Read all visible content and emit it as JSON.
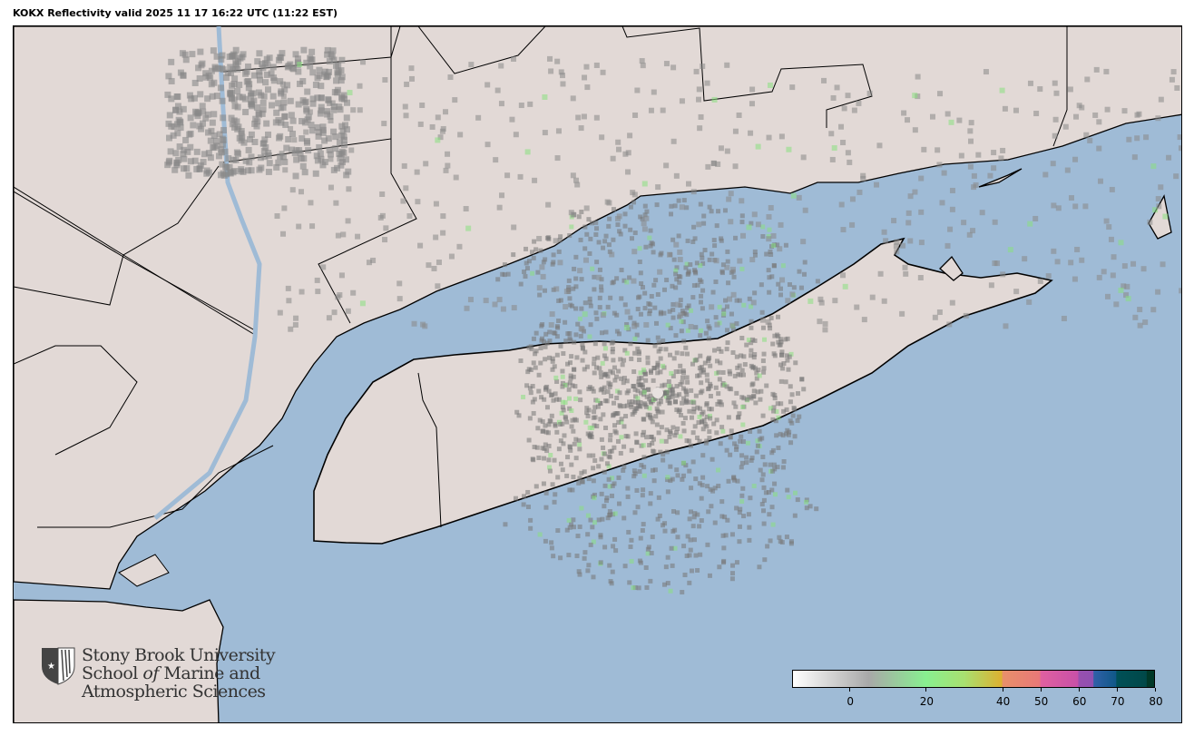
{
  "title": "KOKX Reflectivity valid 2025 11 17 16:22 UTC (11:22 EST)",
  "map": {
    "radar_site": "KOKX",
    "product": "Reflectivity",
    "colors": {
      "water": "#9fbbd6",
      "land": "#e2d9d6",
      "border": "#000000",
      "rivers": "#9fbbd6"
    }
  },
  "colorbar": {
    "units_range": [
      -15,
      80
    ],
    "ticks": [
      {
        "value": 0,
        "label": "0"
      },
      {
        "value": 20,
        "label": "20"
      },
      {
        "value": 40,
        "label": "40"
      },
      {
        "value": 50,
        "label": "50"
      },
      {
        "value": 60,
        "label": "60"
      },
      {
        "value": 70,
        "label": "70"
      },
      {
        "value": 80,
        "label": "80"
      }
    ],
    "stops": [
      {
        "value": -15,
        "color": "#ffffff"
      },
      {
        "value": 5,
        "color": "#a8a8a8"
      },
      {
        "value": 20,
        "color": "#88f090"
      },
      {
        "value": 30,
        "color": "#a8e070"
      },
      {
        "value": 40,
        "color": "#ddb030"
      },
      {
        "value": 40.1,
        "color": "#e8906a"
      },
      {
        "value": 50,
        "color": "#e87878"
      },
      {
        "value": 50.1,
        "color": "#e060a0"
      },
      {
        "value": 60,
        "color": "#c850a8"
      },
      {
        "value": 60.1,
        "color": "#9850b0"
      },
      {
        "value": 64,
        "color": "#9050b0"
      },
      {
        "value": 64.1,
        "color": "#3060a8"
      },
      {
        "value": 70,
        "color": "#105888"
      },
      {
        "value": 70.1,
        "color": "#005058"
      },
      {
        "value": 78,
        "color": "#004848"
      },
      {
        "value": 78.1,
        "color": "#003828"
      },
      {
        "value": 80,
        "color": "#003828"
      }
    ]
  },
  "logo": {
    "line1": "Stony Brook University",
    "line2a": "School ",
    "line2b": "of",
    "line2c": " Marine and",
    "line3": "Atmospheric Sciences"
  }
}
